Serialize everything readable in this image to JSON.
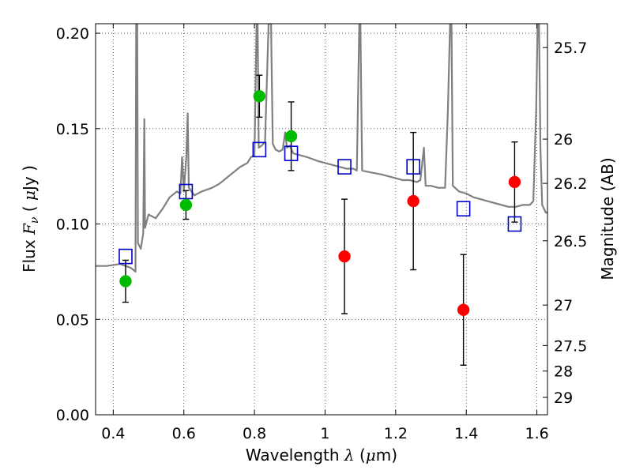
{
  "chart_data": {
    "type": "scatter",
    "title": "",
    "xlabel_text": "Wavelength",
    "xlabel_symbol": "λ",
    "xlabel_unit_open": "(",
    "xlabel_unit_mu": "μ",
    "xlabel_unit_rest": "m)",
    "ylabel_text": "Flux",
    "ylabel_symbol": "F",
    "ylabel_subscript": "ν",
    "ylabel_unit_open": "(",
    "ylabel_unit_mu": "μ",
    "ylabel_unit_rest": "Jy )",
    "y2label": "Magnitude (AB)",
    "xlim": [
      0.35,
      1.63
    ],
    "ylim": [
      0.0,
      0.205
    ],
    "grid": true,
    "x_ticks": [
      0.4,
      0.6,
      0.8,
      1.0,
      1.2,
      1.4,
      1.6
    ],
    "x_tick_labels": [
      "0.4",
      "0.6",
      "0.8",
      "1",
      "1.2",
      "1.4",
      "1.6"
    ],
    "y_ticks": [
      0.0,
      0.05,
      0.1,
      0.15,
      0.2
    ],
    "y_tick_labels": [
      "0.00",
      "0.05",
      "0.10",
      "0.15",
      "0.20"
    ],
    "y2_ticks": [
      {
        "flux": 0.1925,
        "label": "25.7"
      },
      {
        "flux": 0.1445,
        "label": "26"
      },
      {
        "flux": 0.1213,
        "label": "26.2"
      },
      {
        "flux": 0.0912,
        "label": "26.5"
      },
      {
        "flux": 0.0575,
        "label": "27"
      },
      {
        "flux": 0.0363,
        "label": "27.5"
      },
      {
        "flux": 0.0229,
        "label": "28"
      },
      {
        "flux": 0.0091,
        "label": "29"
      }
    ],
    "series": [
      {
        "kind": "green-detections",
        "color": "#00bb00",
        "marker": "circle",
        "points": [
          {
            "x": 0.435,
            "y": 0.07,
            "err": 0.011
          },
          {
            "x": 0.606,
            "y": 0.11,
            "err": 0.0075
          },
          {
            "x": 0.814,
            "y": 0.167,
            "err": 0.011
          },
          {
            "x": 0.904,
            "y": 0.146,
            "err": 0.018
          }
        ]
      },
      {
        "kind": "red-detections",
        "color": "#ff0000",
        "marker": "circle",
        "points": [
          {
            "x": 1.055,
            "y": 0.083,
            "err": 0.03
          },
          {
            "x": 1.25,
            "y": 0.112,
            "err": 0.036
          },
          {
            "x": 1.392,
            "y": 0.055,
            "err": 0.029
          },
          {
            "x": 1.537,
            "y": 0.122,
            "err": 0.021
          }
        ]
      },
      {
        "kind": "model-photometry",
        "color": "#0000cc",
        "marker": "open-square",
        "points": [
          {
            "x": 0.435,
            "y": 0.083
          },
          {
            "x": 0.606,
            "y": 0.117
          },
          {
            "x": 0.814,
            "y": 0.139
          },
          {
            "x": 0.904,
            "y": 0.137
          },
          {
            "x": 1.055,
            "y": 0.13
          },
          {
            "x": 1.25,
            "y": 0.13
          },
          {
            "x": 1.392,
            "y": 0.108
          },
          {
            "x": 1.537,
            "y": 0.1
          }
        ]
      },
      {
        "kind": "model-spectrum",
        "color": "#808080",
        "marker": "line",
        "points": [
          [
            0.35,
            0.078
          ],
          [
            0.38,
            0.078
          ],
          [
            0.42,
            0.079
          ],
          [
            0.45,
            0.077
          ],
          [
            0.463,
            0.075
          ],
          [
            0.465,
            0.205
          ],
          [
            0.468,
            0.205
          ],
          [
            0.47,
            0.09
          ],
          [
            0.478,
            0.087
          ],
          [
            0.485,
            0.095
          ],
          [
            0.488,
            0.155
          ],
          [
            0.49,
            0.098
          ],
          [
            0.5,
            0.105
          ],
          [
            0.52,
            0.103
          ],
          [
            0.54,
            0.108
          ],
          [
            0.56,
            0.114
          ],
          [
            0.58,
            0.117
          ],
          [
            0.59,
            0.116
          ],
          [
            0.595,
            0.135
          ],
          [
            0.6,
            0.117
          ],
          [
            0.607,
            0.135
          ],
          [
            0.611,
            0.158
          ],
          [
            0.614,
            0.119
          ],
          [
            0.63,
            0.115
          ],
          [
            0.65,
            0.117
          ],
          [
            0.68,
            0.119
          ],
          [
            0.7,
            0.121
          ],
          [
            0.72,
            0.124
          ],
          [
            0.74,
            0.127
          ],
          [
            0.76,
            0.13
          ],
          [
            0.78,
            0.132
          ],
          [
            0.79,
            0.135
          ],
          [
            0.8,
            0.136
          ],
          [
            0.806,
            0.205
          ],
          [
            0.809,
            0.205
          ],
          [
            0.812,
            0.14
          ],
          [
            0.82,
            0.141
          ],
          [
            0.83,
            0.143
          ],
          [
            0.84,
            0.205
          ],
          [
            0.847,
            0.205
          ],
          [
            0.852,
            0.142
          ],
          [
            0.86,
            0.139
          ],
          [
            0.87,
            0.138
          ],
          [
            0.88,
            0.139
          ],
          [
            0.887,
            0.148
          ],
          [
            0.892,
            0.14
          ],
          [
            0.9,
            0.141
          ],
          [
            0.91,
            0.137
          ],
          [
            0.93,
            0.136
          ],
          [
            0.95,
            0.135
          ],
          [
            0.98,
            0.133
          ],
          [
            1.0,
            0.132
          ],
          [
            1.02,
            0.131
          ],
          [
            1.04,
            0.13
          ],
          [
            1.06,
            0.129
          ],
          [
            1.08,
            0.129
          ],
          [
            1.09,
            0.128
          ],
          [
            1.097,
            0.205
          ],
          [
            1.1,
            0.205
          ],
          [
            1.105,
            0.128
          ],
          [
            1.13,
            0.127
          ],
          [
            1.16,
            0.126
          ],
          [
            1.18,
            0.125
          ],
          [
            1.2,
            0.124
          ],
          [
            1.22,
            0.123
          ],
          [
            1.24,
            0.123
          ],
          [
            1.26,
            0.122
          ],
          [
            1.27,
            0.123
          ],
          [
            1.28,
            0.14
          ],
          [
            1.285,
            0.12
          ],
          [
            1.3,
            0.12
          ],
          [
            1.32,
            0.119
          ],
          [
            1.34,
            0.119
          ],
          [
            1.348,
            0.16
          ],
          [
            1.354,
            0.205
          ],
          [
            1.358,
            0.205
          ],
          [
            1.362,
            0.12
          ],
          [
            1.38,
            0.117
          ],
          [
            1.4,
            0.116
          ],
          [
            1.42,
            0.114
          ],
          [
            1.44,
            0.113
          ],
          [
            1.46,
            0.112
          ],
          [
            1.48,
            0.111
          ],
          [
            1.5,
            0.11
          ],
          [
            1.52,
            0.109
          ],
          [
            1.54,
            0.109
          ],
          [
            1.56,
            0.11
          ],
          [
            1.58,
            0.11
          ],
          [
            1.59,
            0.112
          ],
          [
            1.598,
            0.16
          ],
          [
            1.602,
            0.205
          ],
          [
            1.606,
            0.205
          ],
          [
            1.61,
            0.14
          ],
          [
            1.615,
            0.11
          ],
          [
            1.625,
            0.106
          ],
          [
            1.63,
            0.106
          ]
        ]
      }
    ]
  }
}
